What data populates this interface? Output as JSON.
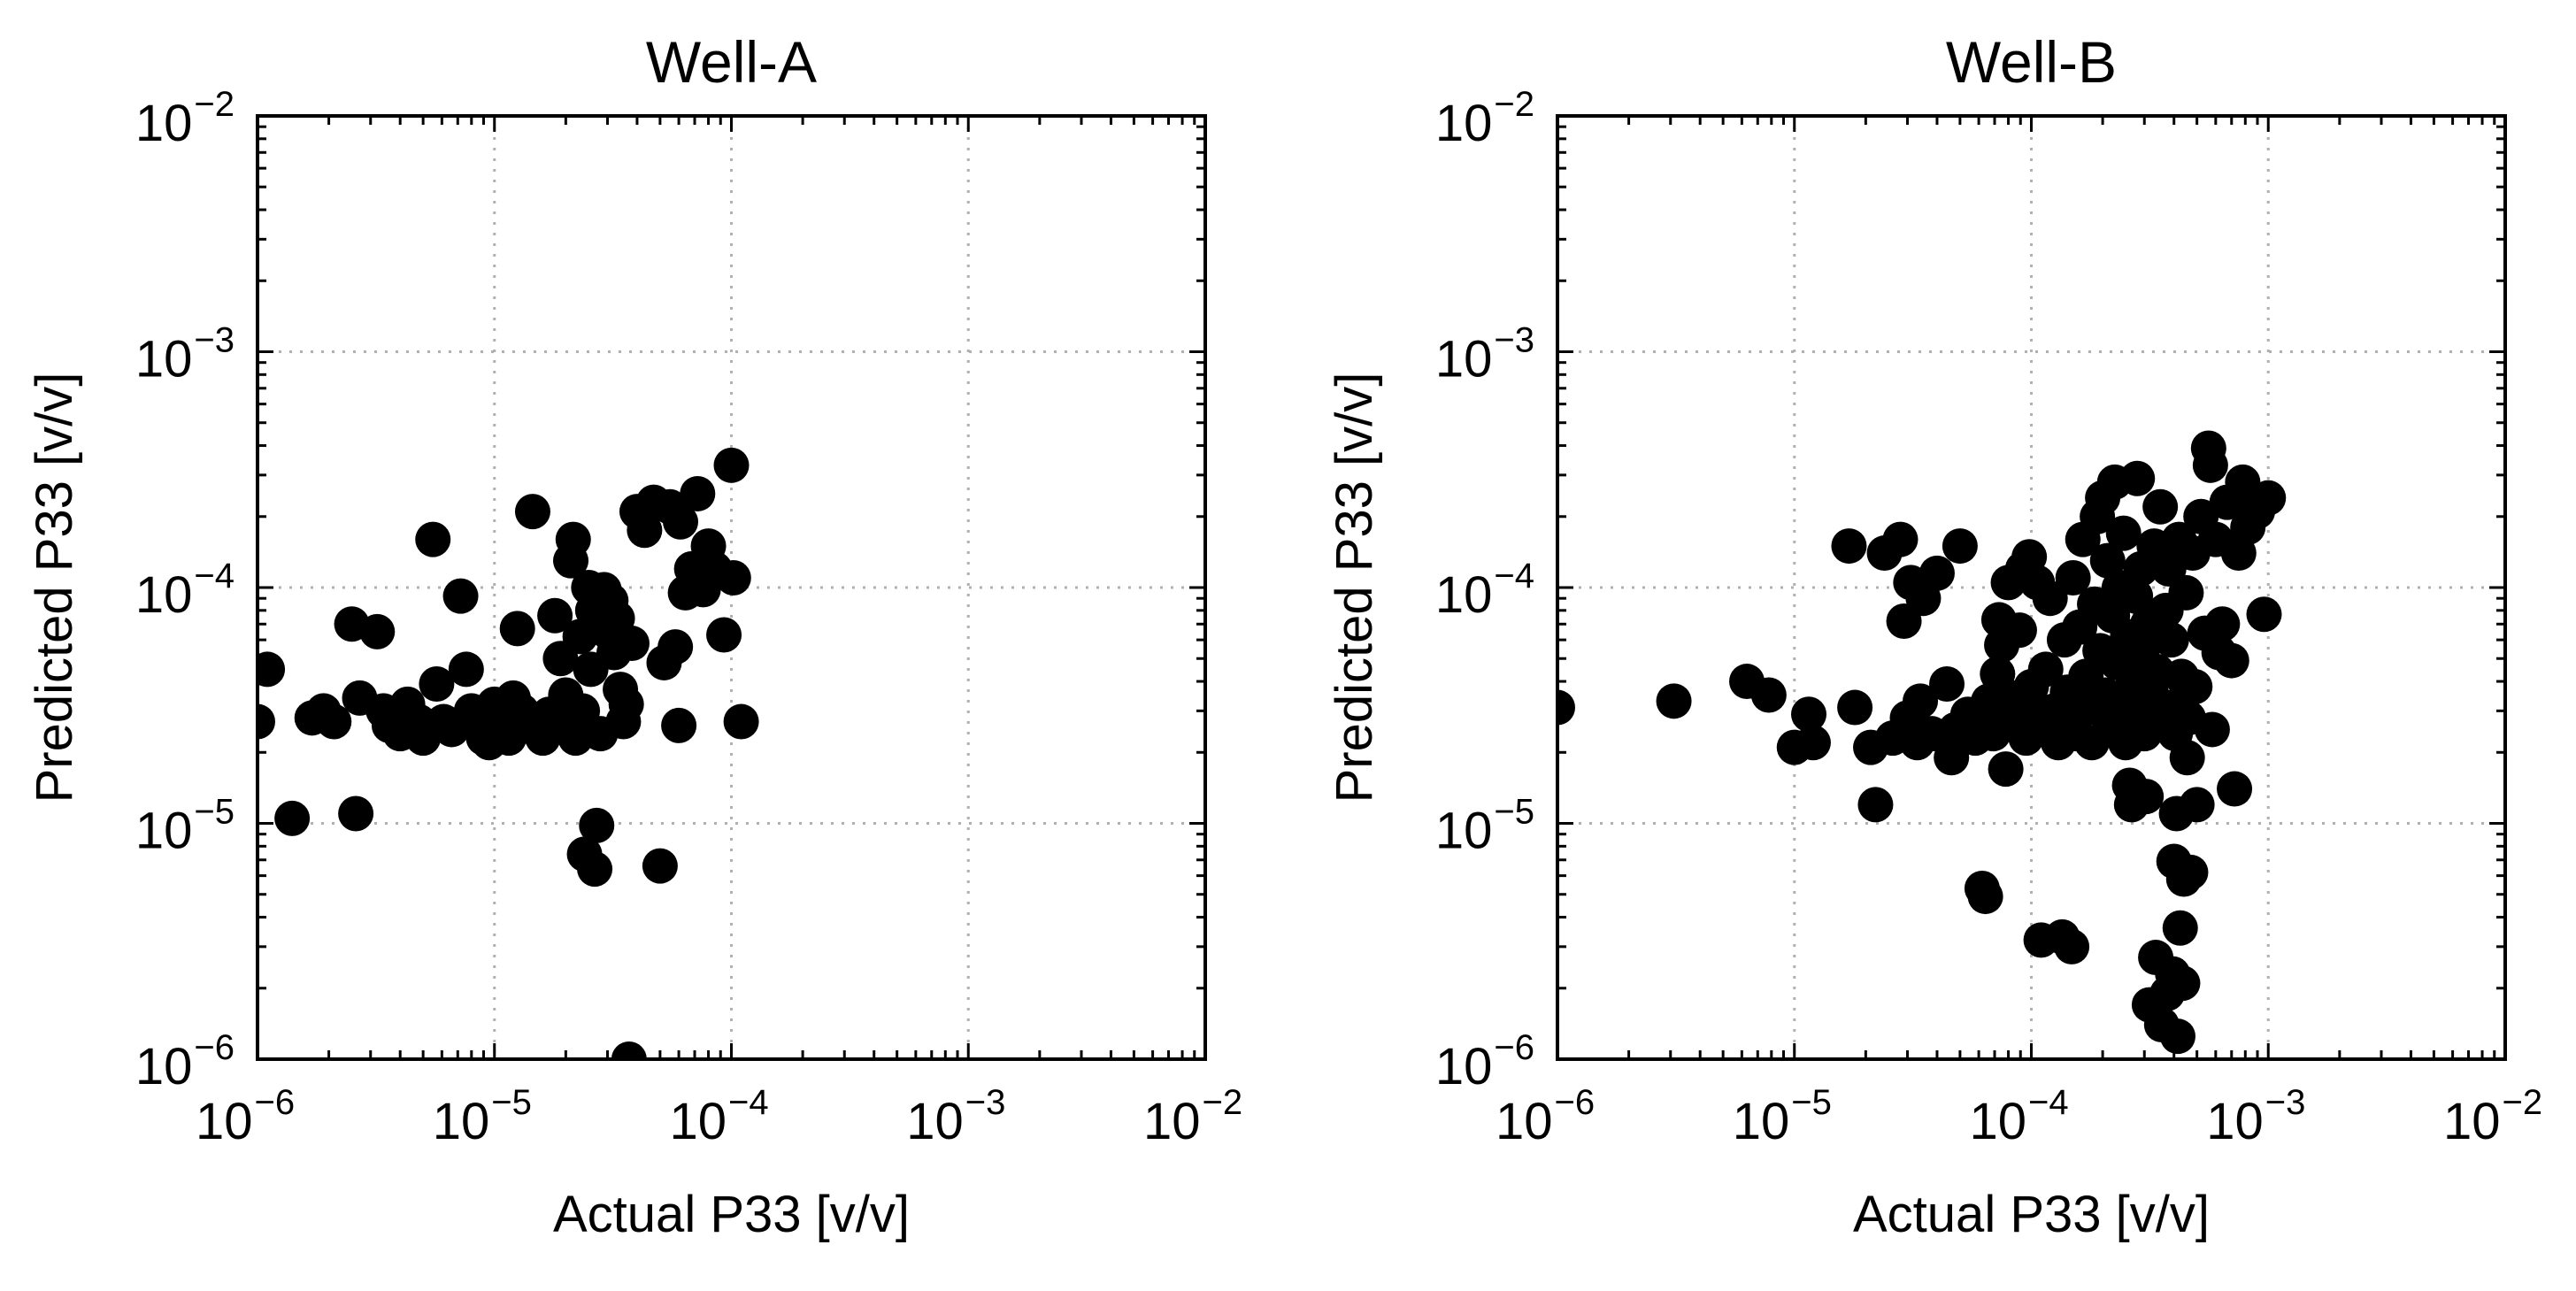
{
  "chart_data": [
    {
      "type": "scatter",
      "title": "Well-A",
      "xlabel": "Actual P33 [v/v]",
      "ylabel": "Predicted P33 [v/v]",
      "xscale": "log",
      "yscale": "log",
      "xlim": [
        1e-06,
        0.01
      ],
      "ylim": [
        1e-06,
        0.01
      ],
      "grid": true,
      "marker_color": "#000000",
      "xticks": [
        {
          "base": "10",
          "exp": "−6"
        },
        {
          "base": "10",
          "exp": "−5"
        },
        {
          "base": "10",
          "exp": "−4"
        },
        {
          "base": "10",
          "exp": "−3"
        },
        {
          "base": "10",
          "exp": "−2"
        }
      ],
      "yticks": [
        {
          "base": "10",
          "exp": "−6"
        },
        {
          "base": "10",
          "exp": "−5"
        },
        {
          "base": "10",
          "exp": "−4"
        },
        {
          "base": "10",
          "exp": "−3"
        },
        {
          "base": "10",
          "exp": "−2"
        }
      ],
      "points": [
        [
          1e-06,
          2.7e-05
        ],
        [
          1.1e-06,
          4.5e-05
        ],
        [
          1.4e-06,
          1.05e-05
        ],
        [
          1.7e-06,
          2.8e-05
        ],
        [
          1.9e-06,
          3e-05
        ],
        [
          2.1e-06,
          2.7e-05
        ],
        [
          2.5e-06,
          7e-05
        ],
        [
          2.6e-06,
          1.1e-05
        ],
        [
          2.7e-06,
          3.4e-05
        ],
        [
          3.2e-06,
          6.5e-05
        ],
        [
          3.4e-06,
          3e-05
        ],
        [
          3.6e-06,
          2.6e-05
        ],
        [
          4e-06,
          2.4e-05
        ],
        [
          4.3e-06,
          3.2e-05
        ],
        [
          4.8e-06,
          2.7e-05
        ],
        [
          5e-06,
          2.3e-05
        ],
        [
          5.5e-06,
          0.00016
        ],
        [
          5.7e-06,
          3.9e-05
        ],
        [
          6.1e-06,
          2.7e-05
        ],
        [
          6.6e-06,
          2.5e-05
        ],
        [
          7.2e-06,
          9.2e-05
        ],
        [
          7.6e-06,
          4.5e-05
        ],
        [
          8e-06,
          3e-05
        ],
        [
          8.5e-06,
          2.6e-05
        ],
        [
          9e-06,
          2.3e-05
        ],
        [
          9.5e-06,
          2.2e-05
        ],
        [
          1e-05,
          3.2e-05
        ],
        [
          1.05e-05,
          2.8e-05
        ],
        [
          1.1e-05,
          2.5e-05
        ],
        [
          1.15e-05,
          2.3e-05
        ],
        [
          1.2e-05,
          3.4e-05
        ],
        [
          1.25e-05,
          6.7e-05
        ],
        [
          1.3e-05,
          3e-05
        ],
        [
          1.4e-05,
          2.7e-05
        ],
        [
          1.45e-05,
          0.00021
        ],
        [
          1.5e-05,
          2.5e-05
        ],
        [
          1.6e-05,
          2.3e-05
        ],
        [
          1.7e-05,
          2.9e-05
        ],
        [
          1.8e-05,
          7.6e-05
        ],
        [
          1.9e-05,
          5e-05
        ],
        [
          1.95e-05,
          2.6e-05
        ],
        [
          2e-05,
          3.5e-05
        ],
        [
          2.1e-05,
          0.00013
        ],
        [
          2.15e-05,
          0.00016
        ],
        [
          2.2e-05,
          2.3e-05
        ],
        [
          2.3e-05,
          6.2e-05
        ],
        [
          2.35e-05,
          3e-05
        ],
        [
          2.4e-05,
          7.4e-06
        ],
        [
          2.5e-05,
          0.0001
        ],
        [
          2.55e-05,
          4.5e-05
        ],
        [
          2.6e-05,
          8e-05
        ],
        [
          2.65e-05,
          6.4e-06
        ],
        [
          2.7e-05,
          9.8e-06
        ],
        [
          2.8e-05,
          2.4e-05
        ],
        [
          2.9e-05,
          9.8e-05
        ],
        [
          3e-05,
          6.5e-05
        ],
        [
          3.1e-05,
          8.8e-05
        ],
        [
          3.2e-05,
          5.3e-05
        ],
        [
          3.3e-05,
          7.4e-05
        ],
        [
          3.4e-05,
          3.7e-05
        ],
        [
          3.5e-05,
          2.7e-05
        ],
        [
          3.6e-05,
          3.2e-05
        ],
        [
          3.7e-05,
          1e-06
        ],
        [
          3.8e-05,
          5.8e-05
        ],
        [
          4e-05,
          0.00021
        ],
        [
          4.3e-05,
          0.000175
        ],
        [
          4.7e-05,
          0.00023
        ],
        [
          5e-05,
          6.6e-06
        ],
        [
          5.2e-05,
          4.8e-05
        ],
        [
          5.5e-05,
          0.00022
        ],
        [
          5.8e-05,
          5.6e-05
        ],
        [
          6e-05,
          2.6e-05
        ],
        [
          6.1e-05,
          0.00019
        ],
        [
          6.4e-05,
          9.5e-05
        ],
        [
          6.8e-05,
          0.00012
        ],
        [
          7.2e-05,
          0.00025
        ],
        [
          7.6e-05,
          9.8e-05
        ],
        [
          8e-05,
          0.00015
        ],
        [
          8.5e-05,
          0.00012
        ],
        [
          9.3e-05,
          6.3e-05
        ],
        [
          0.0001,
          0.00033
        ],
        [
          0.000102,
          0.00011
        ],
        [
          0.00011,
          2.7e-05
        ]
      ]
    },
    {
      "type": "scatter",
      "title": "Well-B",
      "xlabel": "Actual P33 [v/v]",
      "ylabel": "Predicted P33 [v/v]",
      "xscale": "log",
      "yscale": "log",
      "xlim": [
        1e-06,
        0.01
      ],
      "ylim": [
        1e-06,
        0.01
      ],
      "grid": true,
      "marker_color": "#000000",
      "xticks": [
        {
          "base": "10",
          "exp": "−6"
        },
        {
          "base": "10",
          "exp": "−5"
        },
        {
          "base": "10",
          "exp": "−4"
        },
        {
          "base": "10",
          "exp": "−3"
        },
        {
          "base": "10",
          "exp": "−2"
        }
      ],
      "yticks": [
        {
          "base": "10",
          "exp": "−6"
        },
        {
          "base": "10",
          "exp": "−5"
        },
        {
          "base": "10",
          "exp": "−4"
        },
        {
          "base": "10",
          "exp": "−3"
        },
        {
          "base": "10",
          "exp": "−2"
        }
      ],
      "points": [
        [
          1e-06,
          3.1e-05
        ],
        [
          3.1e-06,
          3.3e-05
        ],
        [
          6.3e-06,
          4e-05
        ],
        [
          7.8e-06,
          3.5e-05
        ],
        [
          1e-05,
          2.1e-05
        ],
        [
          1.15e-05,
          2.9e-05
        ],
        [
          1.2e-05,
          2.2e-05
        ],
        [
          1.7e-05,
          0.00015
        ],
        [
          1.8e-05,
          3.1e-05
        ],
        [
          2.1e-05,
          2.1e-05
        ],
        [
          2.2e-05,
          1.2e-05
        ],
        [
          2.4e-05,
          0.00014
        ],
        [
          2.6e-05,
          2.3e-05
        ],
        [
          2.8e-05,
          0.00016
        ],
        [
          2.9e-05,
          7.2e-05
        ],
        [
          3e-05,
          2.8e-05
        ],
        [
          3.1e-05,
          0.000105
        ],
        [
          3.3e-05,
          2.2e-05
        ],
        [
          3.4e-05,
          3.3e-05
        ],
        [
          3.5e-05,
          9e-05
        ],
        [
          3.8e-05,
          2.4e-05
        ],
        [
          4e-05,
          0.000115
        ],
        [
          4.4e-05,
          3.9e-05
        ],
        [
          4.6e-05,
          1.9e-05
        ],
        [
          4.8e-05,
          2.5e-05
        ],
        [
          5e-05,
          0.00015
        ],
        [
          5.4e-05,
          2.9e-05
        ],
        [
          5.8e-05,
          2.3e-05
        ],
        [
          6.2e-05,
          5.3e-06
        ],
        [
          6.4e-05,
          4.9e-06
        ],
        [
          6.6e-05,
          3.3e-05
        ],
        [
          6.9e-05,
          2.4e-05
        ],
        [
          7.2e-05,
          4.3e-05
        ],
        [
          7.3e-05,
          7.3e-05
        ],
        [
          7.5e-05,
          5.7e-05
        ],
        [
          7.8e-05,
          1.7e-05
        ],
        [
          8e-05,
          0.000105
        ],
        [
          8.3e-05,
          2.8e-05
        ],
        [
          8.6e-05,
          3.4e-05
        ],
        [
          8.9e-05,
          6.6e-05
        ],
        [
          9.2e-05,
          0.00012
        ],
        [
          9.5e-05,
          2.3e-05
        ],
        [
          9.8e-05,
          0.000135
        ],
        [
          0.0001,
          3.8e-05
        ],
        [
          0.000103,
          2.9e-05
        ],
        [
          0.000106,
          0.000105
        ],
        [
          0.00011,
          3.2e-06
        ],
        [
          0.000112,
          2.5e-05
        ],
        [
          0.000115,
          4.5e-05
        ],
        [
          0.00012,
          9e-05
        ],
        [
          0.000125,
          3e-05
        ],
        [
          0.00013,
          2.2e-05
        ],
        [
          0.000135,
          3.3e-06
        ],
        [
          0.000138,
          6e-05
        ],
        [
          0.000142,
          3.6e-05
        ],
        [
          0.000145,
          2.7e-05
        ],
        [
          0.000148,
          3e-06
        ],
        [
          0.00015,
          0.00011
        ],
        [
          0.000155,
          2.4e-05
        ],
        [
          0.00016,
          6.8e-05
        ],
        [
          0.000165,
          0.00016
        ],
        [
          0.00017,
          4.2e-05
        ],
        [
          0.000175,
          3.1e-05
        ],
        [
          0.00018,
          2.2e-05
        ],
        [
          0.000185,
          8.5e-05
        ],
        [
          0.00019,
          0.0002
        ],
        [
          0.000195,
          5.4e-05
        ],
        [
          0.0002,
          0.00024
        ],
        [
          0.000205,
          3.5e-05
        ],
        [
          0.00021,
          0.00013
        ],
        [
          0.000215,
          2.6e-05
        ],
        [
          0.00022,
          7.6e-05
        ],
        [
          0.000225,
          0.00028
        ],
        [
          0.00023,
          4.8e-05
        ],
        [
          0.000235,
          0.0001
        ],
        [
          0.00024,
          3.3e-05
        ],
        [
          0.000245,
          0.00017
        ],
        [
          0.00025,
          2.2e-05
        ],
        [
          0.000255,
          6.2e-05
        ],
        [
          0.00026,
          1.45e-05
        ],
        [
          0.000265,
          1.2e-05
        ],
        [
          0.00027,
          4e-05
        ],
        [
          0.000275,
          9.2e-05
        ],
        [
          0.00028,
          0.00029
        ],
        [
          0.000285,
          2.9e-05
        ],
        [
          0.00029,
          0.00012
        ],
        [
          0.000295,
          5.5e-05
        ],
        [
          0.0003,
          2.4e-05
        ],
        [
          0.000305,
          1.3e-05
        ],
        [
          0.00031,
          7e-05
        ],
        [
          0.000315,
          1.7e-06
        ],
        [
          0.00032,
          3.6e-05
        ],
        [
          0.00033,
          0.00015
        ],
        [
          0.000335,
          2.7e-06
        ],
        [
          0.00034,
          4.4e-05
        ],
        [
          0.00035,
          0.00022
        ],
        [
          0.000355,
          1.4e-06
        ],
        [
          0.00036,
          2.6e-05
        ],
        [
          0.00037,
          8e-05
        ],
        [
          0.000375,
          1.9e-06
        ],
        [
          0.00038,
          0.00012
        ],
        [
          0.000385,
          3.1e-05
        ],
        [
          0.00039,
          6e-05
        ],
        [
          0.000395,
          2.3e-06
        ],
        [
          0.0004,
          6.9e-06
        ],
        [
          0.000405,
          2.4e-05
        ],
        [
          0.00041,
          1.1e-05
        ],
        [
          0.000415,
          1.25e-06
        ],
        [
          0.00042,
          0.00016
        ],
        [
          0.000425,
          3.6e-06
        ],
        [
          0.00043,
          4.2e-05
        ],
        [
          0.000435,
          2.1e-06
        ],
        [
          0.00044,
          5.8e-06
        ],
        [
          0.00045,
          9.5e-05
        ],
        [
          0.000455,
          1.9e-05
        ],
        [
          0.00046,
          2.8e-05
        ],
        [
          0.00047,
          6.2e-06
        ],
        [
          0.00048,
          0.00014
        ],
        [
          0.00049,
          3.8e-05
        ],
        [
          0.0005,
          1.2e-05
        ],
        [
          0.00052,
          0.0002
        ],
        [
          0.00054,
          6.4e-05
        ],
        [
          0.00056,
          0.00039
        ],
        [
          0.00057,
          0.00033
        ],
        [
          0.00058,
          2.5e-05
        ],
        [
          0.0006,
          0.00016
        ],
        [
          0.00062,
          5.3e-05
        ],
        [
          0.00064,
          7e-05
        ],
        [
          0.00067,
          0.00023
        ],
        [
          0.0007,
          4.9e-05
        ],
        [
          0.00072,
          1.4e-05
        ],
        [
          0.00075,
          0.00014
        ],
        [
          0.00078,
          0.00028
        ],
        [
          0.00082,
          0.00018
        ],
        [
          0.0009,
          0.00021
        ],
        [
          0.00096,
          7.7e-05
        ],
        [
          0.001,
          0.00024
        ]
      ]
    }
  ]
}
